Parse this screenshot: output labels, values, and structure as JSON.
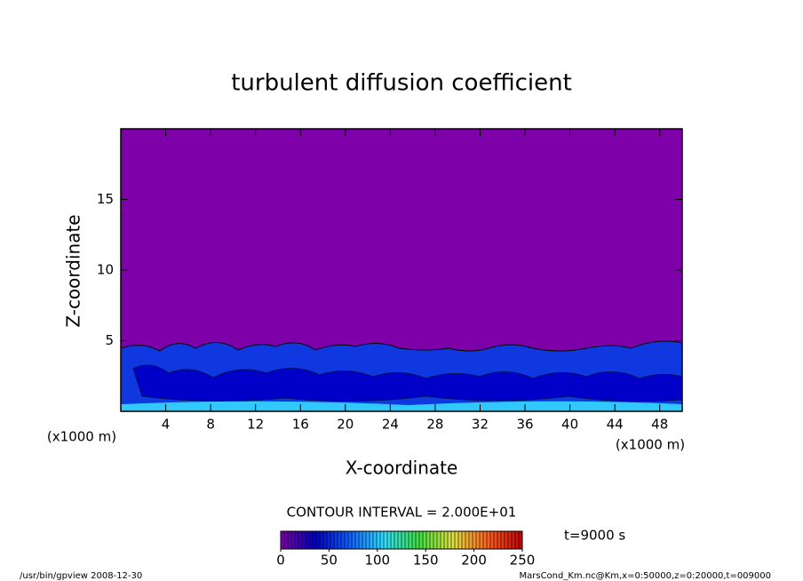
{
  "chart_data": {
    "type": "contour",
    "title": "turbulent diffusion coefficient",
    "x_label": "X-coordinate",
    "y_label": "Z-coordinate",
    "x_unit_label": "(x1000 m)",
    "y_unit_label": "(x1000 m)",
    "xlim": [
      0,
      50
    ],
    "xticks": [
      4,
      8,
      12,
      16,
      20,
      24,
      28,
      32,
      36,
      40,
      44,
      48
    ],
    "ylim": [
      0,
      20
    ],
    "yticks": [
      5,
      10,
      15
    ],
    "field_color": "#7e00a8",
    "contour_interval_label": "CONTOUR INTERVAL = 2.000E+01",
    "time_label": "t=9000 s",
    "colorbar": {
      "lim": [
        0,
        250
      ],
      "ticks": [
        0,
        50,
        100,
        150,
        200,
        250
      ],
      "colors": [
        "#7e00a8",
        "#0000c0",
        "#1060ff",
        "#30e0ff",
        "#40e040",
        "#e0e040",
        "#ff6020",
        "#c00000"
      ]
    },
    "footer_left": "/usr/bin/gpview  2008-12-30",
    "footer_right": "MarsCond_Km.nc@Km,x=0:50000,z=0:20000,t=009000"
  }
}
